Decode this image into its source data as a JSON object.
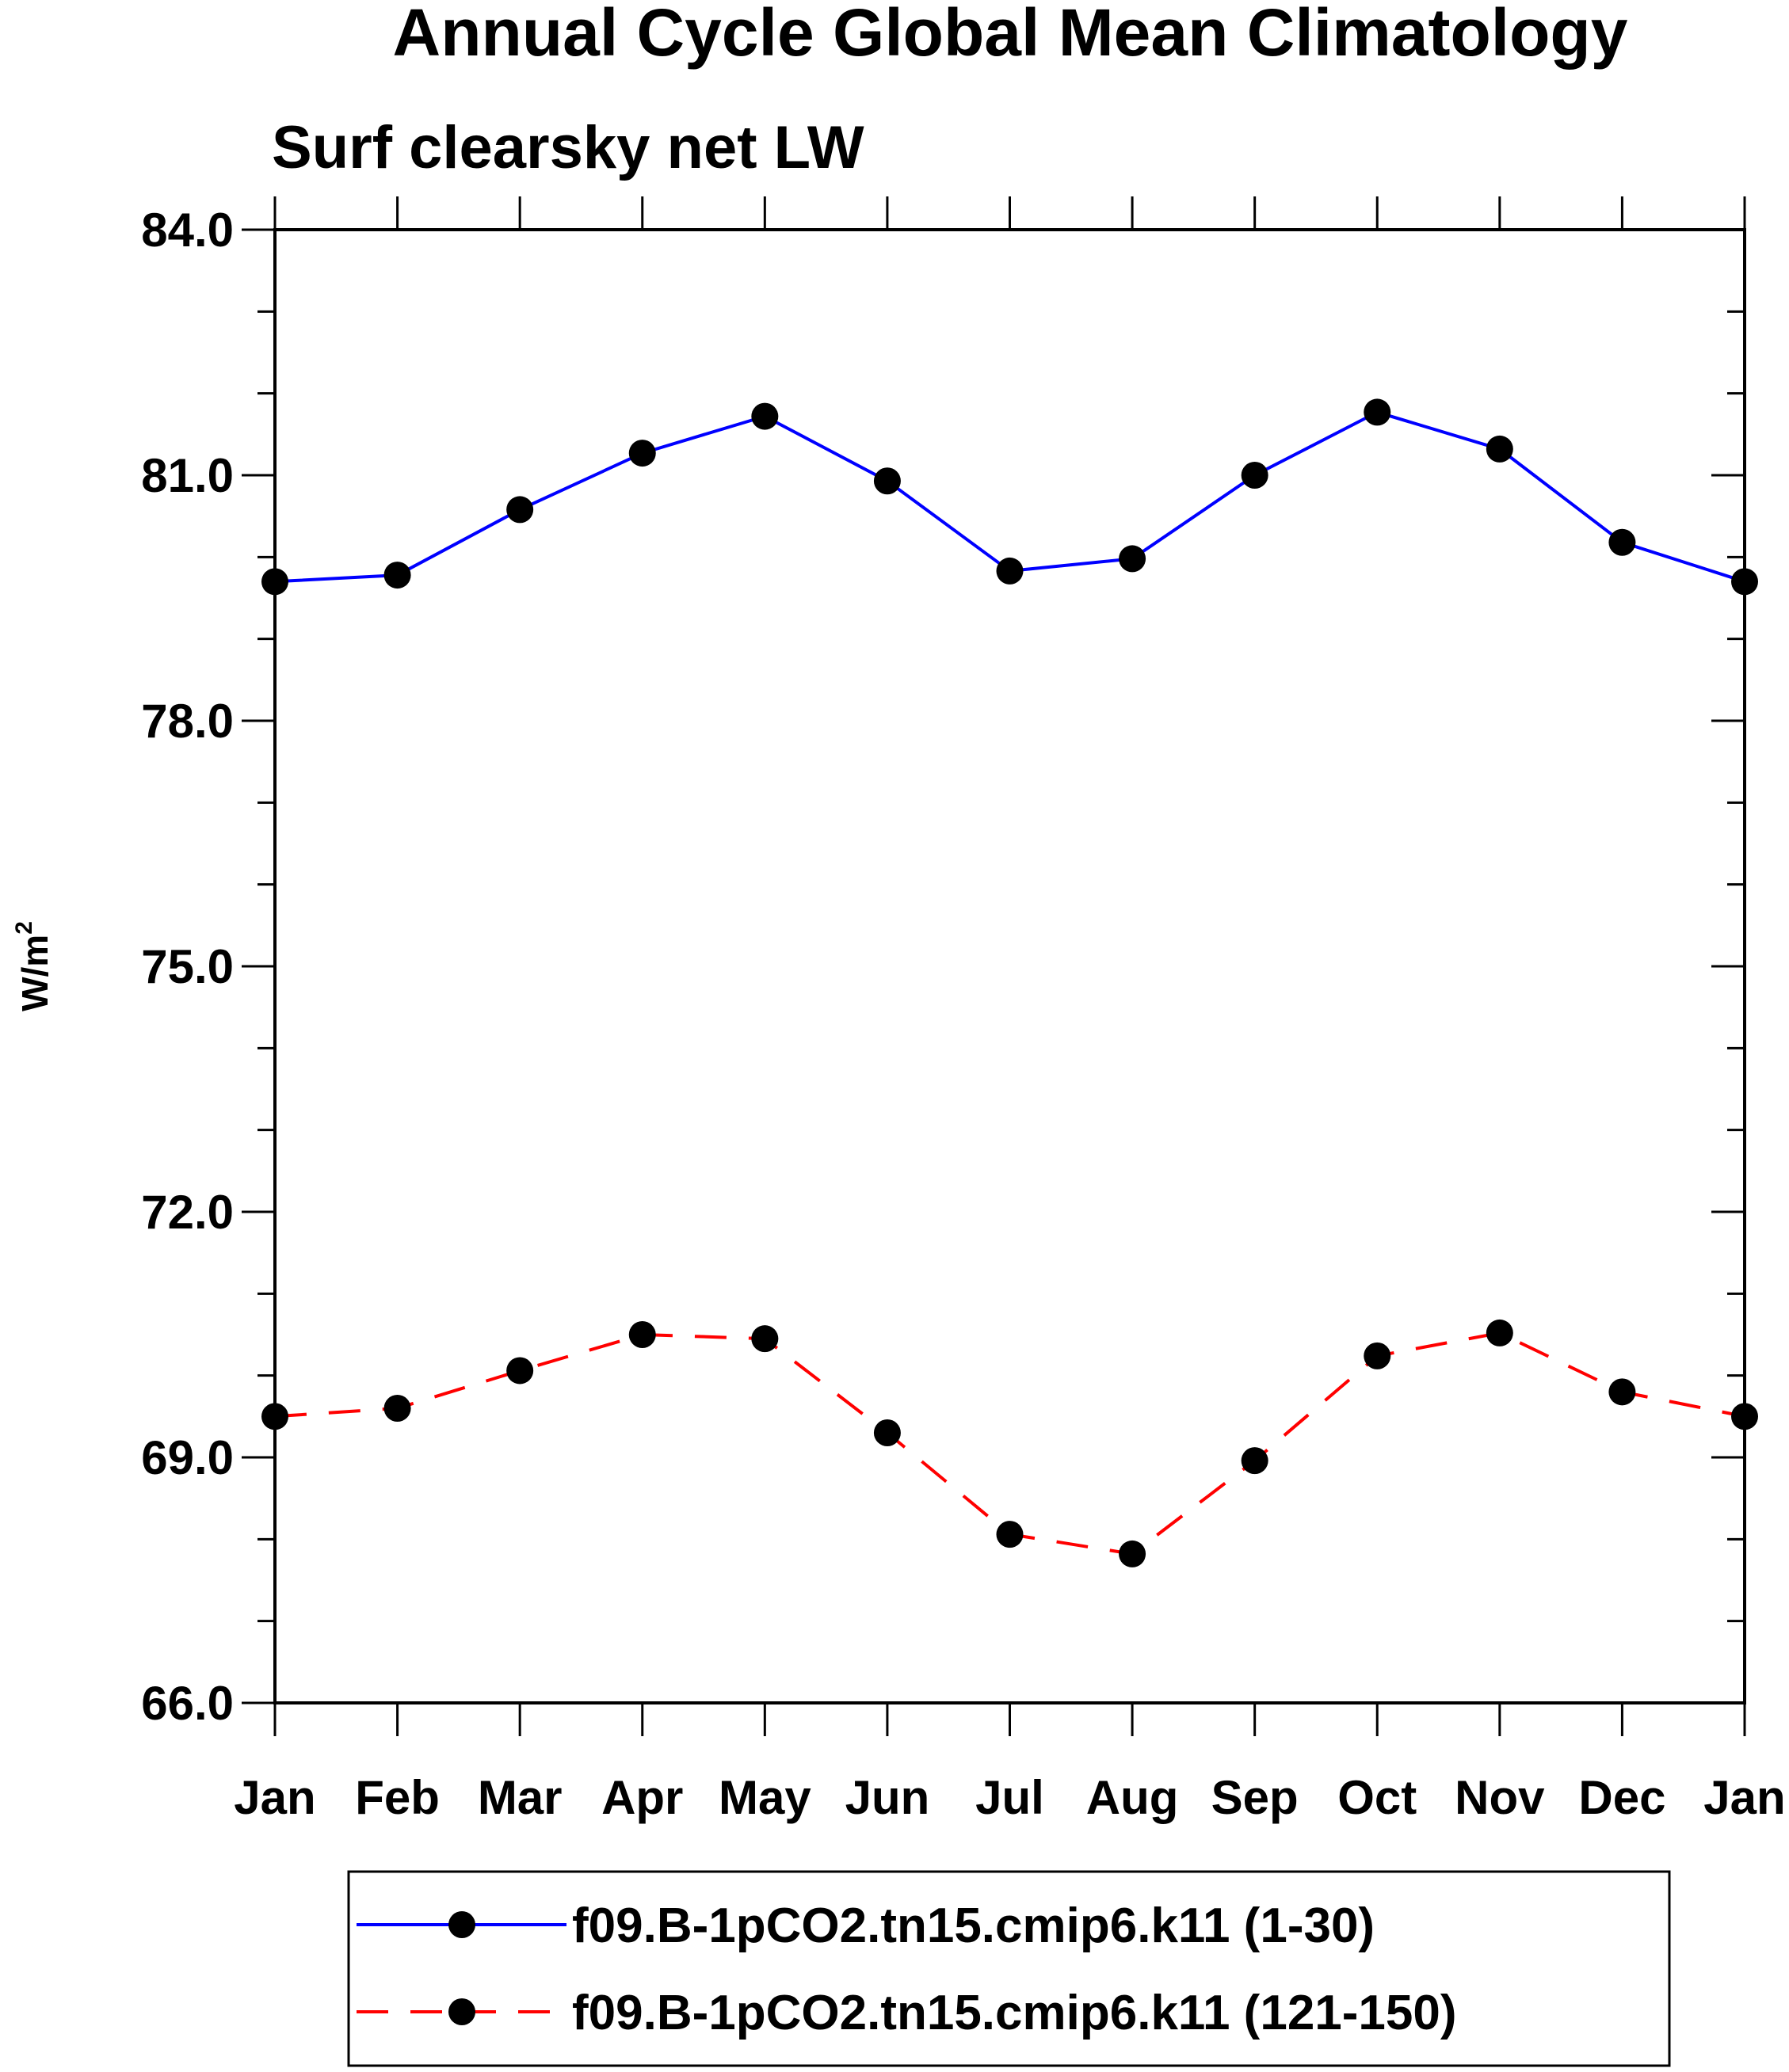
{
  "chart_data": {
    "type": "line",
    "title": "Annual Cycle Global Mean Climatology",
    "subtitle": "Surf clearsky net LW",
    "ylabel": "W/m",
    "ylabel_superscript": "2",
    "xlabel": "",
    "categories": [
      "Jan",
      "Feb",
      "Mar",
      "Apr",
      "May",
      "Jun",
      "Jul",
      "Aug",
      "Sep",
      "Oct",
      "Nov",
      "Dec",
      "Jan"
    ],
    "ylim": [
      66.0,
      84.0
    ],
    "yticks": [
      66.0,
      69.0,
      72.0,
      75.0,
      78.0,
      81.0,
      84.0
    ],
    "ytick_labels": [
      "66.0",
      "69.0",
      "72.0",
      "75.0",
      "78.0",
      "81.0",
      "84.0"
    ],
    "grid": false,
    "legend_position": "bottom",
    "series": [
      {
        "name": "f09.B-1pCO2.tn15.cmip6.k11 (1-30)",
        "color": "#0000ff",
        "line_style": "solid",
        "marker": "filled-circle",
        "values": [
          79.7,
          79.78,
          80.58,
          81.27,
          81.72,
          80.93,
          79.83,
          79.98,
          81.0,
          81.77,
          81.32,
          80.18,
          79.7
        ]
      },
      {
        "name": "f09.B-1pCO2.tn15.cmip6.k11 (121-150)",
        "color": "#ff0000",
        "line_style": "dashed",
        "marker": "filled-circle",
        "values": [
          69.5,
          69.6,
          70.06,
          70.5,
          70.45,
          69.3,
          68.06,
          67.82,
          68.96,
          70.24,
          70.52,
          69.8,
          69.5
        ]
      }
    ]
  }
}
